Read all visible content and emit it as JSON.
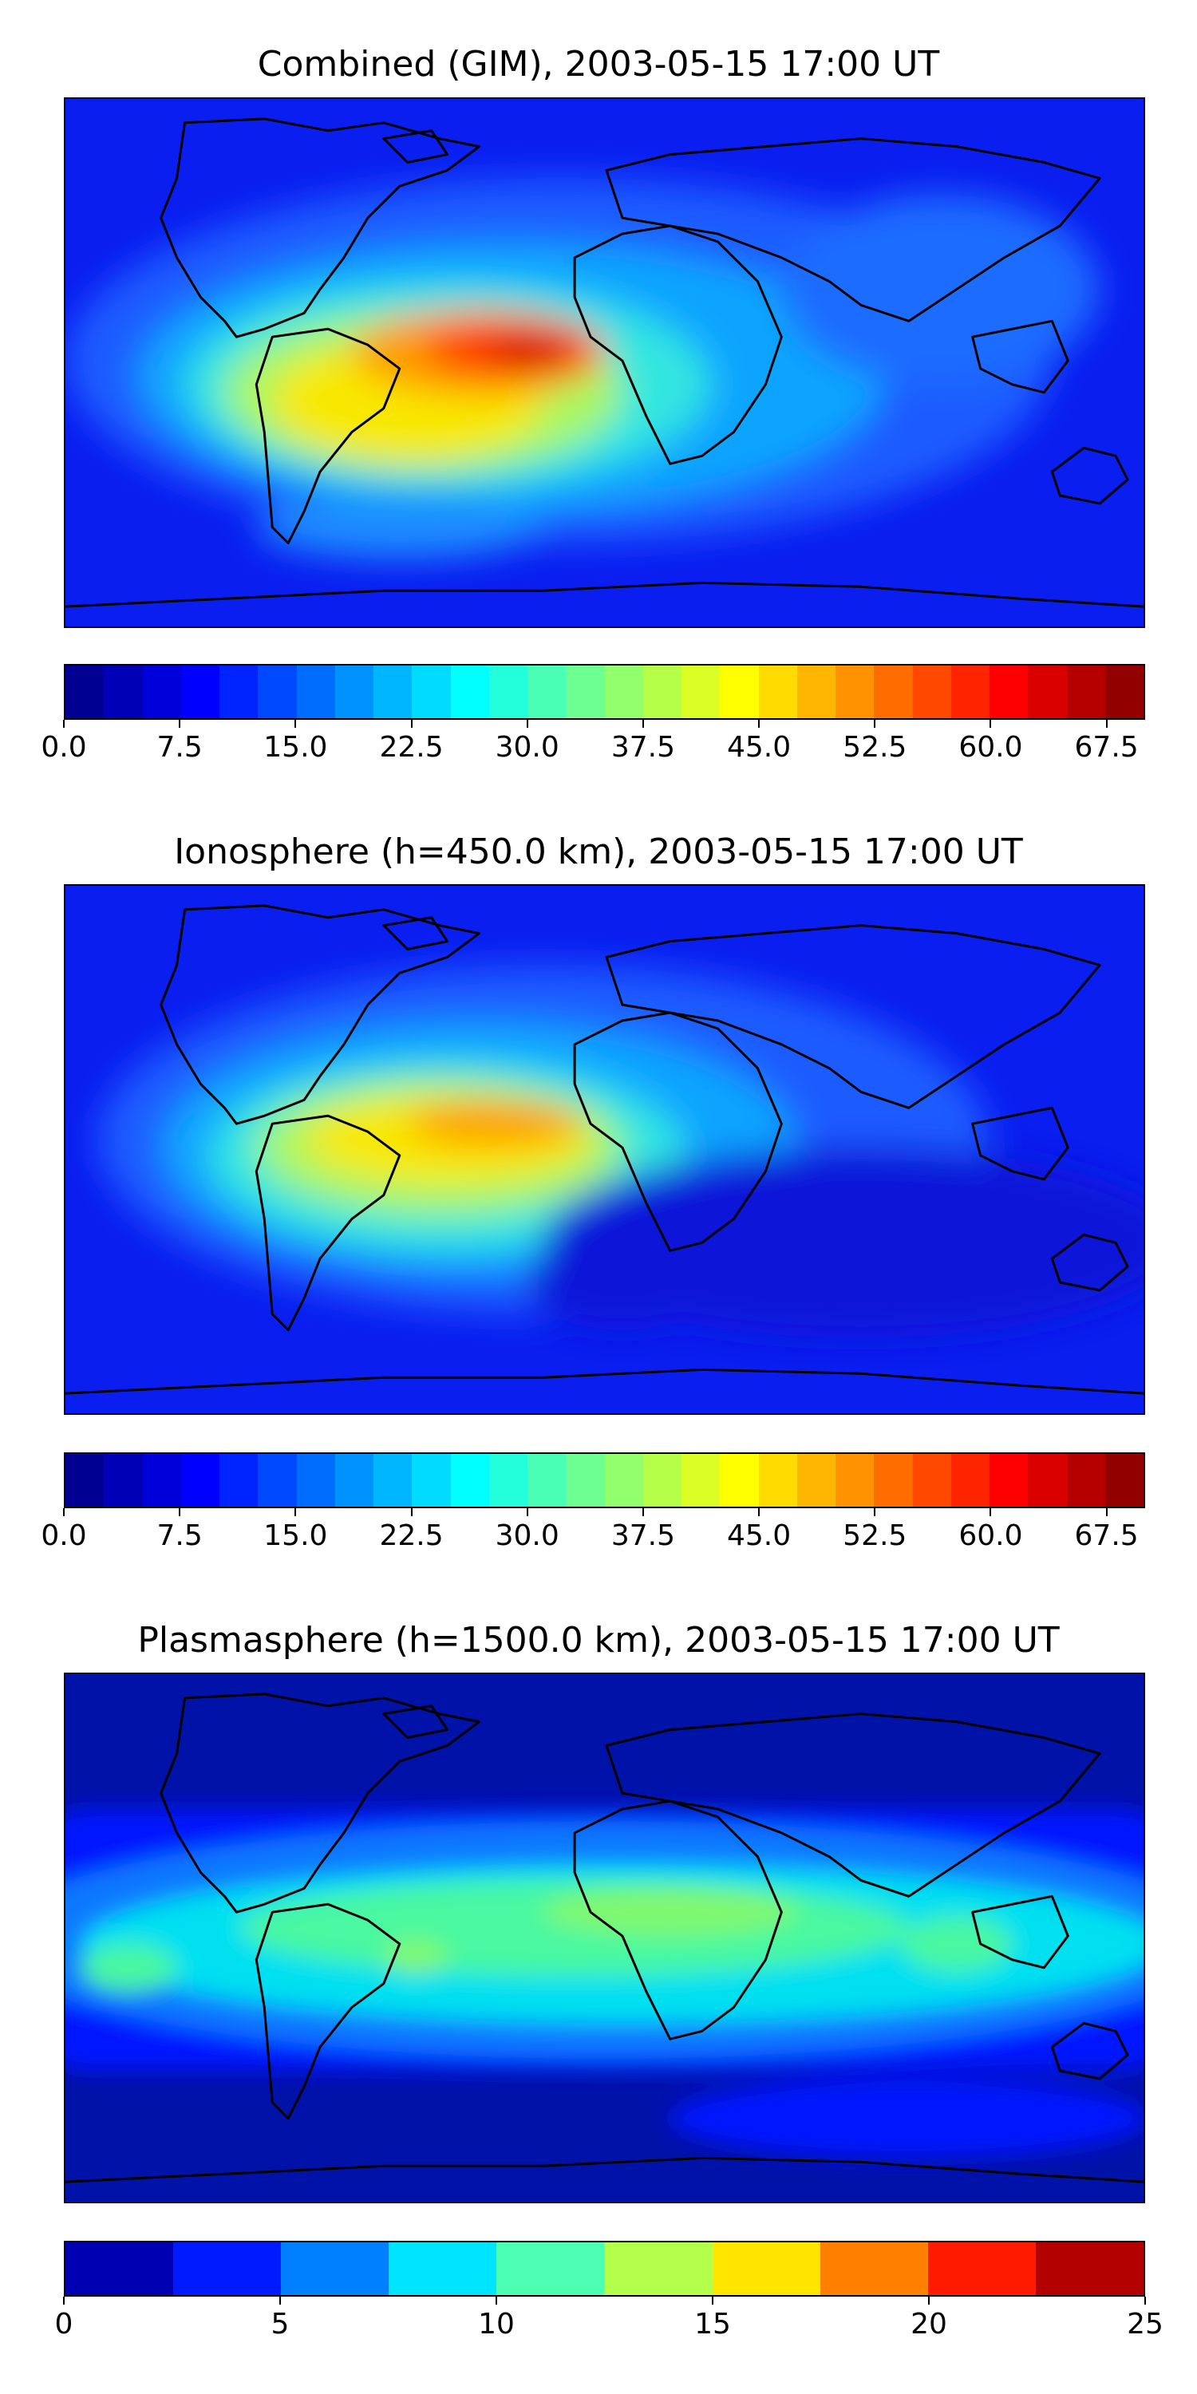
{
  "panels": [
    {
      "title": "Combined (GIM), 2003-05-15 17:00 UT",
      "colorbar": {
        "min": 0,
        "max": 70,
        "levels": 28,
        "ticks": [
          "0.0",
          "7.5",
          "15.0",
          "22.5",
          "30.0",
          "37.5",
          "45.0",
          "52.5",
          "60.0",
          "67.5"
        ],
        "tick_values": [
          0,
          7.5,
          15,
          22.5,
          30,
          37.5,
          45,
          52.5,
          60,
          67.5
        ]
      }
    },
    {
      "title": "Ionosphere  (h=450.0 km), 2003-05-15 17:00 UT",
      "colorbar": {
        "min": 0,
        "max": 70,
        "levels": 28,
        "ticks": [
          "0.0",
          "7.5",
          "15.0",
          "22.5",
          "30.0",
          "37.5",
          "45.0",
          "52.5",
          "60.0",
          "67.5"
        ],
        "tick_values": [
          0,
          7.5,
          15,
          22.5,
          30,
          37.5,
          45,
          52.5,
          60,
          67.5
        ]
      }
    },
    {
      "title": "Plasmasphere (h=1500.0 km), 2003-05-15 17:00 UT",
      "colorbar": {
        "min": 0,
        "max": 25,
        "levels": 10,
        "ticks": [
          "0",
          "5",
          "10",
          "15",
          "20",
          "25"
        ],
        "tick_values": [
          0,
          5,
          10,
          15,
          20,
          25
        ]
      }
    }
  ],
  "colormap": "jet",
  "background_color": "#ffffff",
  "coastline_color": "#000000"
}
